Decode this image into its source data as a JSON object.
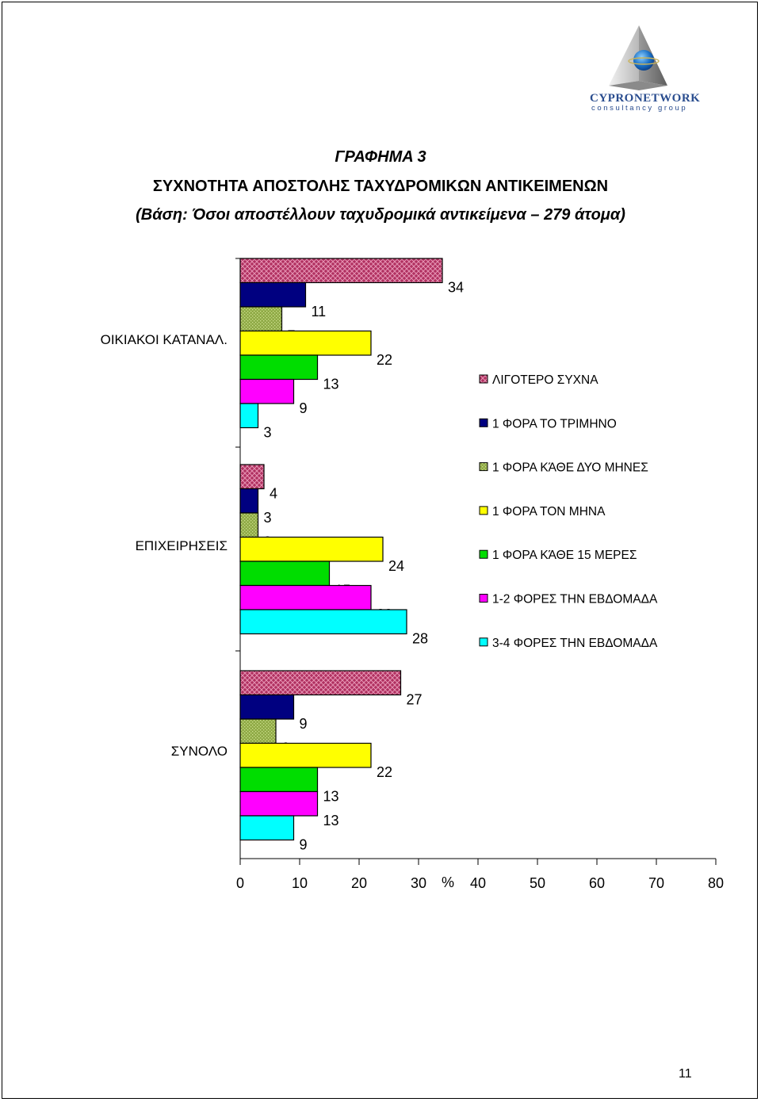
{
  "logo": {
    "name": "CYPRONETWORK",
    "subtitle": "consultancy group"
  },
  "title": {
    "line1": "ΓΡΑΦΗΜΑ 3",
    "line2": "ΣΥΧΝΟΤΗΤΑ ΑΠΟΣΤΟΛΗΣ ΤΑΧΥΔΡΟΜΙΚΩΝ ΑΝΤΙΚΕΙΜΕΝΩΝ",
    "line3": "(Βάση:  Όσοι αποστέλλουν ταχυδρομικά αντικείμενα – 279 άτομα)"
  },
  "page_number": "11",
  "colors": {
    "ΛΙΓΟΤΕΡΟ ΣΥΧΝΑ": "#b03060",
    "1 ΦΟΡΑ ΤΟ ΤΡΙΜΗΝΟ": "#000080",
    "1 ΦΟΡΑ ΚΆΘΕ ΔΥΟ ΜΗΝΕΣ": "#8faa46",
    "1 ΦΟΡΑ ΤΟΝ ΜΗΝΑ": "#ffff00",
    "1 ΦΟΡΑ ΚΆΘΕ 15 ΜΕΡΕΣ": "#00dd00",
    "1-2 ΦΟΡΕΣ ΤΗΝ ΕΒΔΟΜΑΔΑ": "#ff00ff",
    "3-4 ΦΟΡΕΣ ΤΗΝ ΕΒΔΟΜΑΔΑ": "#00ffff"
  },
  "chart_data": {
    "type": "bar",
    "orientation": "horizontal",
    "categories": [
      "ΟΙΚΙΑΚΟΙ ΚΑΤΑΝΑΛ.",
      "ΕΠΙΧΕΙΡΗΣΕΙΣ",
      "ΣΥΝΟΛΟ"
    ],
    "series": [
      {
        "name": "ΛΙΓΟΤΕΡΟ ΣΥΧΝΑ",
        "values": [
          34,
          4,
          27
        ]
      },
      {
        "name": "1 ΦΟΡΑ ΤΟ ΤΡΙΜΗΝΟ",
        "values": [
          11,
          3,
          9
        ]
      },
      {
        "name": "1 ΦΟΡΑ ΚΆΘΕ ΔΥΟ ΜΗΝΕΣ",
        "values": [
          7,
          3,
          6
        ]
      },
      {
        "name": "1 ΦΟΡΑ ΤΟΝ ΜΗΝΑ",
        "values": [
          22,
          24,
          22
        ]
      },
      {
        "name": "1 ΦΟΡΑ ΚΆΘΕ 15 ΜΕΡΕΣ",
        "values": [
          13,
          15,
          13
        ]
      },
      {
        "name": "1-2 ΦΟΡΕΣ ΤΗΝ ΕΒΔΟΜΑΔΑ",
        "values": [
          9,
          22,
          13
        ]
      },
      {
        "name": "3-4 ΦΟΡΕΣ ΤΗΝ ΕΒΔΟΜΑΔΑ",
        "values": [
          3,
          28,
          9
        ]
      }
    ],
    "x_ticks": [
      "0",
      "10",
      "20",
      "30",
      "40",
      "50",
      "60",
      "70",
      "80"
    ],
    "xlabel": "%",
    "xlim": [
      0,
      80
    ],
    "grid": false,
    "legend_position": "right"
  }
}
